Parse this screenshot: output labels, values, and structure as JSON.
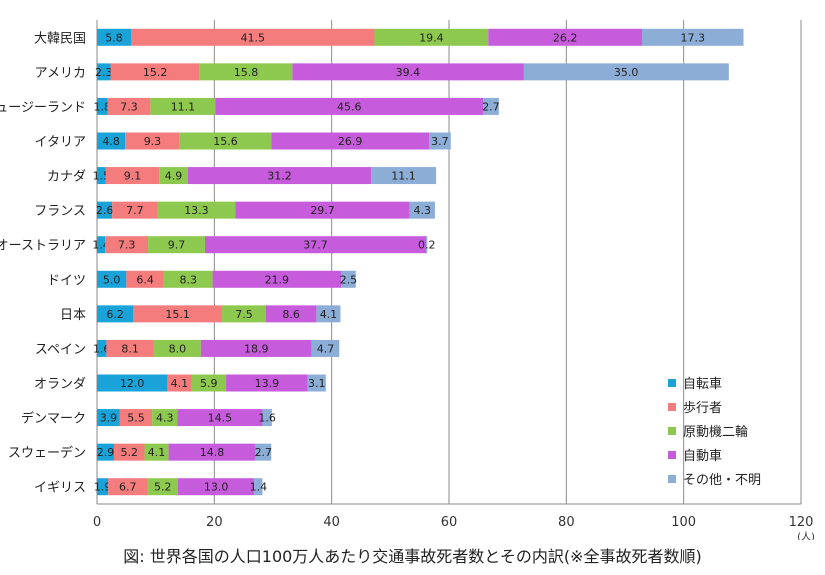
{
  "chart_data": {
    "type": "bar",
    "orientation": "horizontal",
    "stacked": true,
    "categories": [
      "大韓民国",
      "アメリカ",
      "ニュージーランド",
      "イタリア",
      "カナダ",
      "フランス",
      "オーストラリア",
      "ドイツ",
      "日本",
      "スペイン",
      "オランダ",
      "デンマーク",
      "スウェーデン",
      "イギリス"
    ],
    "series": [
      {
        "name": "自転車",
        "color": "#1aa3d9",
        "values": [
          5.8,
          2.3,
          1.8,
          4.8,
          1.5,
          2.6,
          1.4,
          5.0,
          6.2,
          1.6,
          12.0,
          3.9,
          2.9,
          1.9
        ]
      },
      {
        "name": "歩行者",
        "color": "#f47c7c",
        "values": [
          41.5,
          15.2,
          7.3,
          9.3,
          9.1,
          7.7,
          7.3,
          6.4,
          15.1,
          8.1,
          4.1,
          5.5,
          5.2,
          6.7
        ]
      },
      {
        "name": "原動機二輪",
        "color": "#8dc94f",
        "values": [
          19.4,
          15.8,
          11.1,
          15.6,
          4.9,
          13.3,
          9.7,
          8.3,
          7.5,
          8.0,
          5.9,
          4.3,
          4.1,
          5.2
        ]
      },
      {
        "name": "自動車",
        "color": "#c65bdb",
        "values": [
          26.2,
          39.4,
          45.6,
          26.9,
          31.2,
          29.7,
          37.7,
          21.9,
          8.6,
          18.9,
          13.9,
          14.5,
          14.8,
          13.0
        ]
      },
      {
        "name": "その他・不明",
        "color": "#8cadd6",
        "values": [
          17.3,
          35.0,
          2.7,
          3.7,
          11.1,
          4.3,
          0.2,
          2.5,
          4.1,
          4.7,
          3.1,
          1.6,
          2.7,
          1.4
        ]
      }
    ],
    "xlim": [
      0,
      120
    ],
    "xticks": [
      0,
      20,
      40,
      60,
      80,
      100,
      120
    ],
    "xunit": "(人)",
    "grid": "vertical",
    "legend": "bottom-right",
    "caption": "図: 世界各国の人口100万人あたり交通事故死者数とその内訳(※全事故死者数順)"
  }
}
